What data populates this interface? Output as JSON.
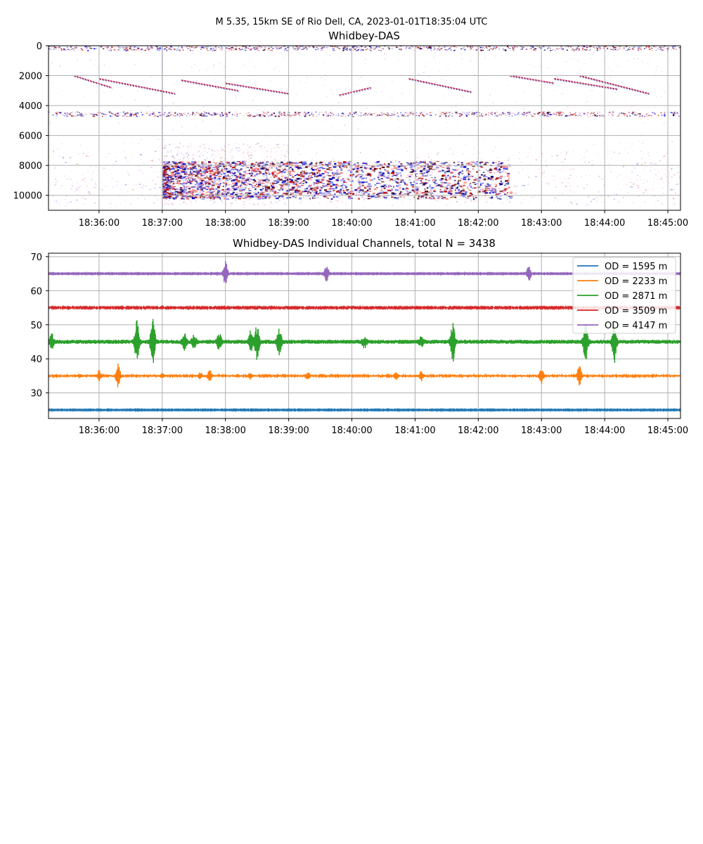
{
  "figure": {
    "suptitle": "M 5.35, 15km SE of Rio Dell, CA, 2023-01-01T18:35:04 UTC"
  },
  "chart_data": [
    {
      "type": "heatmap",
      "title": "Whidbey-DAS",
      "xlabel": "",
      "ylabel": "",
      "x_ticks": [
        "18:36:00",
        "18:37:00",
        "18:38:00",
        "18:39:00",
        "18:40:00",
        "18:41:00",
        "18:42:00",
        "18:43:00",
        "18:44:00",
        "18:45:00"
      ],
      "x_range_minutes": [
        35.2,
        45.2
      ],
      "y_range": [
        11000,
        0
      ],
      "y_ticks": [
        0,
        2000,
        4000,
        6000,
        8000,
        10000
      ],
      "colormap": "seismic (blue-white-red)",
      "grid": true,
      "features": {
        "noisy_bands_m": [
          [
            0,
            300
          ],
          [
            4400,
            4700
          ]
        ],
        "noise_floor_band_m": [
          7000,
          10600
        ],
        "strong_shaking": {
          "start": "18:37:00",
          "fade": "18:42:30",
          "od_range_m": [
            7700,
            10200
          ]
        },
        "moving_streaks": [
          {
            "t0": 35.6,
            "t1": 36.2,
            "od0": 2000,
            "od1": 2800
          },
          {
            "t0": 36.0,
            "t1": 37.2,
            "od0": 2200,
            "od1": 3200
          },
          {
            "t0": 37.3,
            "t1": 38.2,
            "od0": 2300,
            "od1": 3000
          },
          {
            "t0": 38.0,
            "t1": 39.0,
            "od0": 2500,
            "od1": 3200
          },
          {
            "t0": 40.9,
            "t1": 41.9,
            "od0": 2200,
            "od1": 3100
          },
          {
            "t0": 42.5,
            "t1": 43.2,
            "od0": 2000,
            "od1": 2500
          },
          {
            "t0": 43.6,
            "t1": 44.7,
            "od0": 2000,
            "od1": 3200
          },
          {
            "t0": 43.2,
            "t1": 44.2,
            "od0": 2200,
            "od1": 2900
          },
          {
            "t0": 39.8,
            "t1": 40.3,
            "od0": 3300,
            "od1": 2800
          }
        ]
      }
    },
    {
      "type": "line",
      "title": "Whidbey-DAS Individual Channels, total N = 3438",
      "xlabel": "",
      "ylabel": "",
      "x_ticks": [
        "18:36:00",
        "18:37:00",
        "18:38:00",
        "18:39:00",
        "18:40:00",
        "18:41:00",
        "18:42:00",
        "18:43:00",
        "18:44:00",
        "18:45:00"
      ],
      "x_range_minutes": [
        35.2,
        45.2
      ],
      "ylim": [
        22.5,
        71
      ],
      "y_ticks": [
        30,
        40,
        50,
        60,
        70
      ],
      "grid": true,
      "legend": "upper right",
      "series": [
        {
          "name": "OD = 1595 m",
          "color": "#1f77b4",
          "offset": 25,
          "noise": 0.15,
          "events": []
        },
        {
          "name": "OD = 2233 m",
          "color": "#ff7f0e",
          "offset": 35,
          "noise": 0.25,
          "events": [
            [
              35.7,
              0.5
            ],
            [
              36.0,
              1.5
            ],
            [
              36.3,
              3.5
            ],
            [
              37.0,
              0.6
            ],
            [
              37.6,
              0.8
            ],
            [
              37.75,
              1.6
            ],
            [
              38.4,
              0.9
            ],
            [
              39.3,
              1.0
            ],
            [
              40.7,
              1.0
            ],
            [
              41.1,
              1.4
            ],
            [
              43.0,
              2.2
            ],
            [
              43.6,
              2.8
            ]
          ]
        },
        {
          "name": "OD = 2871 m",
          "color": "#2ca02c",
          "offset": 45,
          "noise": 0.6,
          "events": [
            [
              35.25,
              2.0
            ],
            [
              36.6,
              6.5
            ],
            [
              36.85,
              6.8
            ],
            [
              37.35,
              2.3
            ],
            [
              37.5,
              1.8
            ],
            [
              37.9,
              2.2
            ],
            [
              38.4,
              3.0
            ],
            [
              38.5,
              5.0
            ],
            [
              38.85,
              4.0
            ],
            [
              40.2,
              1.6
            ],
            [
              41.1,
              1.4
            ],
            [
              41.6,
              5.5
            ],
            [
              43.7,
              6.0
            ],
            [
              44.15,
              6.0
            ]
          ]
        },
        {
          "name": "OD = 3509 m",
          "color": "#d62728",
          "offset": 55,
          "noise": 0.2,
          "events": [
            [
              37.0,
              0.5
            ],
            [
              37.2,
              0.4
            ]
          ]
        },
        {
          "name": "OD = 4147 m",
          "color": "#9467bd",
          "offset": 65,
          "noise": 0.15,
          "events": [
            [
              38.0,
              3.8
            ],
            [
              39.6,
              2.5
            ],
            [
              42.8,
              2.3
            ]
          ]
        }
      ]
    }
  ]
}
